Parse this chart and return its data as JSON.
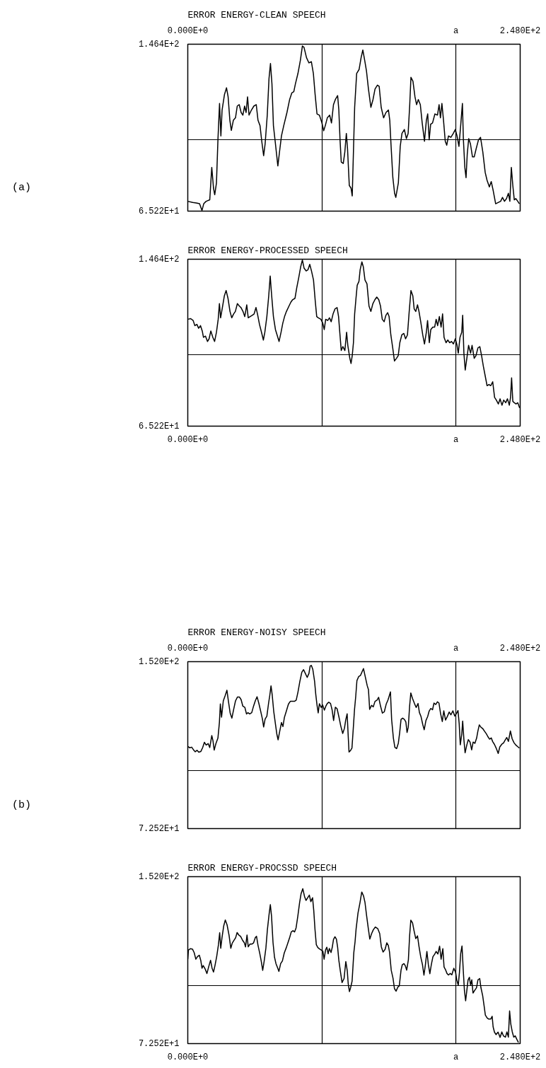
{
  "chart_data": [
    {
      "type": "line",
      "title": "ERROR ENERGY-CLEAN SPEECH",
      "annotations": [
        "(a)"
      ],
      "xlim": [
        0,
        248
      ],
      "ylim": [
        65.22,
        146.4
      ],
      "xticks": [
        {
          "value": 0,
          "label": "0.000E+0"
        },
        {
          "value": 100,
          "label": null
        },
        {
          "value": 200,
          "label": "a"
        },
        {
          "value": 248,
          "label": "2.480E+2"
        }
      ],
      "yticks": [
        {
          "value": 65.22,
          "label": "6.522E+1"
        },
        {
          "value": 100,
          "label": null
        },
        {
          "value": 146.4,
          "label": "1.464E+2"
        }
      ],
      "grid": true,
      "x": [
        0,
        3.7,
        6.4,
        8.8,
        10.6,
        11.9,
        13.7,
        16.4,
        17.9,
        19.2,
        20.1,
        21.4,
        22.5,
        23.7,
        24.7,
        25.6,
        27.4,
        28.9,
        30.1,
        31.4,
        32.5,
        34.0,
        35.6,
        36.9,
        38.4,
        39.8,
        41.1,
        42.4,
        43.5,
        44.6,
        45.7,
        47.5,
        49.3,
        51.1,
        52.4,
        53.9,
        55.2,
        56.6,
        57.7,
        59.3,
        60.6,
        61.7,
        62.8,
        63.9,
        65.2,
        67.2,
        68.7,
        69.9,
        71.6,
        74.0,
        76.0,
        77.6,
        79.1,
        80.3,
        82.2,
        84.0,
        85.5,
        86.7,
        88.6,
        90.4,
        92.2,
        93.7,
        95.0,
        96.4,
        98.2,
        100.1,
        101.4,
        102.6,
        104.1,
        105.9,
        107.2,
        108.7,
        110.1,
        111.8,
        112.7,
        113.6,
        114.5,
        116.0,
        117.2,
        118.3,
        119.2,
        120.5,
        121.8,
        122.7,
        123.6,
        124.5,
        126.0,
        127.8,
        129.3,
        130.6,
        132.0,
        133.3,
        134.8,
        136.6,
        138.2,
        139.7,
        141.5,
        142.8,
        144.3,
        146.1,
        147.9,
        149.7,
        150.7,
        151.6,
        153.0,
        154.3,
        155.2,
        157.1,
        158.5,
        159.8,
        161.6,
        163.1,
        164.4,
        165.6,
        166.5,
        168.0,
        169.5,
        170.7,
        172.0,
        173.5,
        174.9,
        176.6,
        178.0,
        179.0,
        180.1,
        181.2,
        182.6,
        184.4,
        186.3,
        187.5,
        188.5,
        189.6,
        190.8,
        192.1,
        193.2,
        194.5,
        196.3,
        198.1,
        199.6,
        200.9,
        202.3,
        203.6,
        204.9,
        205.6,
        206.7,
        207.6,
        208.5,
        209.6,
        210.9,
        212.4,
        213.7,
        215.1,
        216.9,
        218.4,
        220.1,
        221.9,
        223.3,
        225.0,
        226.4,
        227.9,
        229.7,
        231.5,
        233.4,
        234.8,
        236.3,
        237.8,
        239.2,
        240.3,
        241.4,
        242.5,
        243.6,
        244.7,
        246.2,
        247.4
      ],
      "series": [
        {
          "color": "#000000",
          "values": [
            70.0,
            69.4,
            69.2,
            68.8,
            65.5,
            68.8,
            70.0,
            70.7,
            86.5,
            76.4,
            73.2,
            78.9,
            99.9,
            117.6,
            101.8,
            114.4,
            122.0,
            125.2,
            120.8,
            109.4,
            104.5,
            109.4,
            110.6,
            116.3,
            117.0,
            113.2,
            111.9,
            116.3,
            113.2,
            120.8,
            111.9,
            114.4,
            116.3,
            117.0,
            109.4,
            106.8,
            99.2,
            92.2,
            97.9,
            111.9,
            129.7,
            137.0,
            127.1,
            106.8,
            99.2,
            87.2,
            95.4,
            101.8,
            106.8,
            113.2,
            119.5,
            122.7,
            123.3,
            127.1,
            132.2,
            138.5,
            145.5,
            144.9,
            139.8,
            137.3,
            137.9,
            132.2,
            122.0,
            112.5,
            111.9,
            108.1,
            104.3,
            106.8,
            110.6,
            111.9,
            108.1,
            117.0,
            119.5,
            121.4,
            114.4,
            99.9,
            89.1,
            88.4,
            94.1,
            103.0,
            95.4,
            77.7,
            76.4,
            72.6,
            94.1,
            115.7,
            132.2,
            134.1,
            139.8,
            143.6,
            138.5,
            133.5,
            124.6,
            115.7,
            119.5,
            124.6,
            126.5,
            125.9,
            115.7,
            110.6,
            113.2,
            114.4,
            109.4,
            97.9,
            81.5,
            73.9,
            71.9,
            78.9,
            96.7,
            103.0,
            104.9,
            100.5,
            103.0,
            117.0,
            130.3,
            128.4,
            120.8,
            117.0,
            119.5,
            117.0,
            108.1,
            99.2,
            109.4,
            112.5,
            99.9,
            107.5,
            108.1,
            112.5,
            111.9,
            117.0,
            110.6,
            117.6,
            109.4,
            99.2,
            97.3,
            101.8,
            101.1,
            103.0,
            104.9,
            101.8,
            96.7,
            106.8,
            117.6,
            100.5,
            86.5,
            81.5,
            92.9,
            100.5,
            97.9,
            91.6,
            91.6,
            95.4,
            99.9,
            101.1,
            94.1,
            84.0,
            80.2,
            77.0,
            79.6,
            75.1,
            68.8,
            69.4,
            70.0,
            71.9,
            70.0,
            71.3,
            73.9,
            70.0,
            86.5,
            77.7,
            70.7,
            71.3,
            70.0,
            68.8
          ]
        }
      ]
    },
    {
      "type": "line",
      "title": "ERROR ENERGY-PROCESSED SPEECH",
      "xlim": [
        0,
        248
      ],
      "ylim": [
        65.22,
        146.4
      ],
      "xticks": [
        {
          "value": 0,
          "label": "0.000E+0"
        },
        {
          "value": 100,
          "label": null
        },
        {
          "value": 200,
          "label": "a"
        },
        {
          "value": 248,
          "label": "2.480E+2"
        }
      ],
      "yticks": [
        {
          "value": 65.22,
          "label": "6.522E+1"
        },
        {
          "value": 100,
          "label": null
        },
        {
          "value": 146.4,
          "label": "1.464E+2"
        }
      ],
      "grid": true,
      "x": [
        0,
        2.2,
        4.0,
        5.3,
        6.8,
        8.1,
        9.5,
        10.8,
        11.7,
        13.2,
        14.7,
        15.9,
        17.2,
        18.7,
        20.0,
        21.4,
        22.7,
        23.6,
        24.5,
        26.0,
        27.3,
        28.6,
        30.0,
        31.5,
        32.8,
        34.2,
        35.5,
        37.0,
        38.5,
        39.7,
        41.2,
        42.5,
        44.0,
        45.1,
        46.5,
        48.0,
        49.5,
        50.9,
        52.0,
        53.5,
        55.0,
        56.4,
        57.5,
        59.0,
        60.4,
        61.5,
        62.6,
        63.9,
        65.4,
        66.9,
        68.1,
        69.6,
        70.9,
        72.2,
        73.6,
        75.5,
        76.9,
        78.2,
        80.0,
        81.3,
        82.8,
        84.2,
        85.5,
        86.8,
        88.3,
        89.7,
        91.0,
        92.3,
        93.8,
        95.1,
        96.2,
        97.4,
        99.3,
        100.7,
        101.8,
        102.9,
        104.4,
        105.7,
        107.0,
        108.4,
        109.9,
        111.4,
        112.5,
        113.4,
        114.5,
        115.7,
        117.2,
        118.5,
        119.4,
        120.9,
        121.8,
        122.7,
        123.6,
        124.5,
        125.5,
        126.4,
        127.7,
        128.6,
        129.9,
        131.0,
        132.2,
        133.7,
        135.2,
        136.6,
        138.1,
        139.6,
        141.0,
        142.5,
        143.8,
        145.1,
        146.5,
        147.8,
        149.1,
        150.2,
        151.5,
        152.9,
        154.2,
        155.7,
        157.0,
        158.2,
        159.7,
        161.2,
        162.5,
        163.9,
        165.2,
        166.5,
        167.9,
        168.9,
        170.1,
        171.4,
        172.5,
        173.8,
        175.3,
        176.6,
        178.0,
        178.9,
        180.2,
        181.3,
        182.8,
        184.2,
        185.3,
        186.4,
        187.7,
        189.0,
        190.1,
        191.2,
        192.7,
        194.0,
        195.4,
        196.7,
        198.2,
        199.6,
        200.9,
        201.8,
        203.1,
        204.4,
        205.1,
        206.0,
        207.0,
        208.2,
        209.5,
        211.0,
        212.1,
        213.7,
        215.0,
        216.5,
        217.9,
        219.2,
        220.5,
        222.0,
        223.3,
        224.7,
        226.0,
        227.5,
        228.9,
        230.2,
        231.7,
        233.0,
        234.4,
        235.7,
        237.2,
        238.5,
        239.9,
        240.8,
        241.6,
        242.5,
        243.6,
        244.9,
        246.2,
        247.6
      ],
      "series": [
        {
          "color": "#000000",
          "values": [
            117.2,
            117.5,
            116.6,
            114.1,
            114.7,
            112.8,
            114.1,
            111.5,
            108.4,
            109.0,
            106.4,
            107.7,
            111.5,
            108.4,
            106.4,
            110.9,
            117.2,
            124.8,
            117.9,
            123.6,
            128.6,
            131.2,
            127.4,
            121.0,
            117.9,
            119.8,
            121.0,
            124.8,
            123.6,
            122.9,
            121.0,
            118.5,
            124.2,
            117.9,
            118.5,
            119.1,
            119.8,
            122.9,
            119.8,
            114.7,
            110.9,
            107.1,
            110.9,
            118.5,
            128.6,
            138.2,
            128.6,
            118.5,
            112.2,
            109.0,
            106.4,
            110.9,
            115.3,
            118.5,
            121.0,
            123.6,
            125.5,
            126.7,
            127.4,
            132.5,
            137.5,
            142.6,
            146.0,
            142.0,
            140.7,
            141.3,
            143.9,
            140.7,
            136.3,
            126.1,
            118.5,
            117.9,
            117.2,
            115.3,
            112.2,
            117.2,
            116.6,
            117.9,
            116.0,
            119.8,
            122.3,
            122.9,
            118.5,
            110.9,
            102.0,
            103.9,
            102.0,
            110.9,
            104.5,
            98.2,
            95.7,
            99.5,
            105.8,
            119.8,
            127.4,
            133.7,
            135.6,
            141.3,
            145.1,
            142.6,
            136.3,
            134.4,
            123.6,
            121.0,
            124.8,
            126.7,
            128.0,
            126.7,
            123.6,
            117.2,
            116.0,
            119.1,
            120.4,
            118.5,
            109.6,
            103.3,
            96.9,
            98.2,
            99.5,
            105.8,
            109.6,
            110.3,
            107.7,
            109.6,
            121.0,
            131.2,
            128.6,
            122.3,
            121.0,
            124.2,
            121.0,
            116.0,
            109.6,
            105.2,
            110.9,
            116.6,
            105.8,
            112.2,
            113.4,
            113.4,
            117.2,
            114.1,
            118.5,
            113.4,
            119.8,
            108.4,
            105.8,
            107.1,
            105.8,
            106.4,
            105.2,
            107.7,
            104.5,
            100.7,
            108.4,
            110.9,
            119.1,
            100.7,
            92.5,
            98.2,
            104.5,
            100.7,
            104.5,
            98.2,
            99.5,
            103.3,
            103.9,
            99.5,
            94.4,
            89.3,
            84.9,
            85.5,
            84.9,
            86.8,
            79.2,
            77.9,
            76.0,
            78.5,
            75.4,
            77.9,
            76.6,
            78.5,
            75.4,
            79.2,
            88.7,
            77.3,
            76.6,
            76.0,
            76.6,
            74.1
          ]
        }
      ]
    },
    {
      "type": "line",
      "title": "ERROR ENERGY-NOISY SPEECH",
      "annotations": [
        "(b)"
      ],
      "xlim": [
        0,
        248
      ],
      "ylim": [
        72.52,
        152.0
      ],
      "xticks": [
        {
          "value": 0,
          "label": "0.000E+0"
        },
        {
          "value": 100,
          "label": null
        },
        {
          "value": 200,
          "label": "a"
        },
        {
          "value": 248,
          "label": "2.480E+2"
        }
      ],
      "yticks": [
        {
          "value": 72.52,
          "label": "7.252E+1"
        },
        {
          "value": 100,
          "label": null
        },
        {
          "value": 152.0,
          "label": "1.520E+2"
        }
      ],
      "grid": true,
      "x": [
        0,
        1.5,
        2.9,
        4.2,
        5.5,
        6.9,
        8.2,
        9.7,
        11.1,
        12.4,
        13.7,
        15.2,
        16.4,
        17.9,
        18.8,
        19.7,
        21.0,
        22.5,
        23.6,
        24.3,
        25.2,
        26.5,
        27.9,
        29.2,
        30.3,
        31.6,
        32.9,
        34.3,
        35.6,
        37.1,
        38.5,
        39.8,
        41.1,
        42.6,
        43.8,
        44.9,
        46.2,
        47.7,
        49.1,
        50.4,
        51.7,
        53.0,
        54.4,
        55.7,
        56.6,
        57.7,
        59.0,
        60.3,
        61.2,
        62.1,
        63.0,
        64.1,
        65.4,
        66.5,
        67.4,
        68.5,
        69.9,
        71.0,
        72.1,
        73.6,
        75.1,
        76.5,
        78.2,
        79.6,
        80.9,
        82.2,
        83.6,
        85.1,
        86.4,
        87.7,
        89.1,
        90.4,
        91.3,
        92.2,
        93.3,
        94.6,
        95.5,
        96.4,
        97.3,
        98.2,
        99.5,
        100.6,
        101.9,
        103.0,
        104.1,
        105.2,
        106.5,
        107.7,
        108.8,
        110.1,
        111.4,
        112.9,
        114.1,
        115.6,
        116.9,
        117.8,
        118.9,
        119.6,
        120.3,
        121.4,
        122.5,
        123.5,
        124.4,
        125.3,
        126.2,
        127.5,
        128.9,
        130.2,
        131.1,
        132.6,
        133.9,
        134.8,
        135.7,
        137.1,
        138.4,
        139.7,
        141.2,
        142.4,
        143.9,
        145.2,
        146.6,
        148.1,
        149.4,
        150.3,
        151.2,
        152.1,
        153.4,
        154.5,
        155.8,
        157.1,
        158.1,
        159.1,
        160.3,
        161.6,
        162.7,
        163.6,
        164.5,
        165.5,
        166.4,
        167.6,
        169.1,
        170.4,
        171.8,
        172.8,
        174.0,
        175.3,
        176.4,
        177.7,
        179.0,
        180.1,
        181.3,
        182.6,
        183.7,
        185.0,
        186.3,
        187.4,
        188.6,
        189.9,
        191.0,
        192.3,
        193.8,
        195.0,
        196.3,
        197.8,
        199.2,
        200.5,
        201.6,
        202.5,
        203.3,
        204.4,
        205.1,
        206.0,
        206.9,
        208.2,
        209.3,
        210.6,
        211.8,
        212.9,
        214.2,
        215.5,
        216.4,
        217.5,
        218.8,
        220.1,
        221.5,
        222.8,
        223.9,
        225.2,
        226.4,
        227.5,
        228.8,
        230.1,
        231.6,
        232.8,
        234.3,
        235.6,
        236.7,
        238.0,
        239.2,
        240.7,
        242.0,
        243.4,
        244.9,
        246.2,
        247.4
      ],
      "series": [
        {
          "color": "#000000",
          "values": [
            111.6,
            111.0,
            111.3,
            110.1,
            109.1,
            109.8,
            108.9,
            109.2,
            111.1,
            113.6,
            112.3,
            113.0,
            111.1,
            116.8,
            114.3,
            109.9,
            113.0,
            115.6,
            123.1,
            131.9,
            125.6,
            133.3,
            135.8,
            138.4,
            133.3,
            127.6,
            125.1,
            129.5,
            133.3,
            135.2,
            135.2,
            133.9,
            130.8,
            130.2,
            127.1,
            127.7,
            127.1,
            127.7,
            130.9,
            133.4,
            135.3,
            132.2,
            128.4,
            124.7,
            120.9,
            124.7,
            126.0,
            132.3,
            136.0,
            140.5,
            136.1,
            128.5,
            122.3,
            117.3,
            114.8,
            118.5,
            123.0,
            121.1,
            125.5,
            128.6,
            131.8,
            133.1,
            133.1,
            133.1,
            133.7,
            137.5,
            142.5,
            147.0,
            148.2,
            146.4,
            144.5,
            146.4,
            149.9,
            150.2,
            148.3,
            142.7,
            136.4,
            131.4,
            127.6,
            132.0,
            130.2,
            131.4,
            128.9,
            130.8,
            132.1,
            132.7,
            132.1,
            129.0,
            124.0,
            130.3,
            129.6,
            125.3,
            121.5,
            117.8,
            120.3,
            124.1,
            127.2,
            117.8,
            109.0,
            109.7,
            110.9,
            120.4,
            129.2,
            135.4,
            143.0,
            144.9,
            145.5,
            147.4,
            148.7,
            144.3,
            140.5,
            138.7,
            129.3,
            131.2,
            130.5,
            133.1,
            133.7,
            135.0,
            130.6,
            127.5,
            128.1,
            131.9,
            133.8,
            135.7,
            137.6,
            124.4,
            115.6,
            111.2,
            110.6,
            113.2,
            118.2,
            124.5,
            125.1,
            124.5,
            123.3,
            118.3,
            120.8,
            130.8,
            137.1,
            134.6,
            132.1,
            130.2,
            132.1,
            127.8,
            125.9,
            122.1,
            119.6,
            124.0,
            125.9,
            128.5,
            129.7,
            129.1,
            132.3,
            131.6,
            132.9,
            132.3,
            127.3,
            123.5,
            128.6,
            124.2,
            126.1,
            128.0,
            126.7,
            128.6,
            126.1,
            127.4,
            128.7,
            122.4,
            112.4,
            117.4,
            123.7,
            114.9,
            108.6,
            112.4,
            114.9,
            113.7,
            110.0,
            113.7,
            113.1,
            115.6,
            118.8,
            121.9,
            120.7,
            120.1,
            118.8,
            117.6,
            116.3,
            115.1,
            115.7,
            113.9,
            112.6,
            110.8,
            108.3,
            111.4,
            112.7,
            113.3,
            114.6,
            115.9,
            114.0,
            119.0,
            115.3,
            113.4,
            112.2,
            111.5,
            110.9
          ]
        }
      ]
    },
    {
      "type": "line",
      "title": "ERROR ENERGY-PROCSSD SPEECH",
      "xlim": [
        0,
        248
      ],
      "ylim": [
        72.52,
        152.0
      ],
      "xticks": [
        {
          "value": 0,
          "label": "0.000E+0"
        },
        {
          "value": 100,
          "label": null
        },
        {
          "value": 200,
          "label": "a"
        },
        {
          "value": 248,
          "label": "2.480E+2"
        }
      ],
      "yticks": [
        {
          "value": 72.52,
          "label": "7.252E+1"
        },
        {
          "value": 100,
          "label": null
        },
        {
          "value": 152.0,
          "label": "1.520E+2"
        }
      ],
      "grid": true,
      "x": [
        0,
        0.5,
        2.0,
        3.5,
        4.8,
        6.0,
        7.3,
        8.6,
        9.7,
        10.6,
        11.5,
        13.0,
        14.3,
        15.6,
        17.0,
        18.1,
        19.2,
        20.3,
        21.6,
        22.9,
        23.8,
        24.6,
        25.5,
        26.8,
        28.0,
        29.3,
        30.8,
        32.1,
        33.2,
        34.5,
        35.7,
        36.8,
        38.1,
        39.4,
        40.9,
        42.2,
        43.1,
        44.2,
        45.1,
        46.4,
        47.8,
        49.1,
        50.4,
        51.3,
        52.4,
        53.7,
        54.8,
        55.9,
        57.0,
        58.3,
        59.4,
        60.7,
        61.6,
        62.5,
        63.6,
        64.7,
        65.8,
        66.9,
        68.0,
        69.3,
        70.6,
        72.0,
        73.5,
        74.8,
        76.1,
        77.2,
        78.5,
        79.7,
        80.8,
        82.1,
        83.4,
        84.5,
        85.8,
        87.1,
        88.2,
        89.5,
        90.7,
        91.8,
        93.1,
        94.0,
        94.9,
        95.9,
        97.0,
        98.1,
        99.5,
        100.8,
        101.7,
        102.8,
        103.7,
        104.7,
        105.6,
        106.9,
        107.8,
        108.7,
        109.8,
        110.9,
        111.8,
        112.7,
        113.8,
        115.1,
        116.6,
        117.9,
        119.0,
        119.7,
        120.6,
        121.5,
        122.6,
        123.9,
        124.8,
        125.6,
        127.0,
        128.5,
        129.8,
        131.1,
        132.2,
        133.4,
        134.7,
        135.8,
        137.1,
        138.4,
        139.9,
        141.7,
        143.2,
        144.4,
        145.7,
        147.2,
        148.5,
        149.6,
        150.5,
        151.8,
        153.1,
        154.2,
        155.4,
        156.7,
        157.8,
        159.1,
        160.0,
        161.3,
        162.4,
        163.3,
        164.6,
        165.5,
        166.4,
        167.7,
        168.8,
        170.1,
        171.4,
        172.5,
        173.8,
        175.1,
        176.2,
        177.3,
        178.4,
        179.5,
        180.6,
        181.7,
        182.9,
        184.2,
        185.3,
        186.6,
        187.9,
        189.0,
        190.3,
        191.2,
        192.3,
        193.4,
        194.5,
        195.8,
        197.0,
        198.5,
        199.8,
        200.7,
        201.8,
        202.7,
        203.6,
        204.6,
        205.5,
        206.4,
        207.3,
        208.2,
        209.1,
        210.1,
        211.0,
        211.9,
        212.8,
        214.1,
        215.4,
        216.5,
        217.8,
        218.7,
        220.0,
        221.1,
        222.0,
        223.3,
        224.5,
        226.0,
        227.1,
        227.8,
        228.8,
        230.0,
        231.5,
        233.0,
        234.3,
        235.5,
        237.0,
        238.1,
        239.2,
        240.1,
        241.0,
        242.1,
        243.2,
        244.3,
        245.6,
        246.7
      ],
      "series": [
        {
          "color": "#000000",
          "values": [
            112.7,
            117.1,
            117.7,
            117.5,
            115.8,
            112.7,
            114.0,
            114.6,
            112.1,
            108.4,
            109.7,
            108.0,
            105.9,
            109.1,
            112.2,
            108.5,
            106.6,
            109.7,
            114.1,
            119.7,
            125.3,
            117.9,
            122.8,
            128.5,
            131.4,
            129.1,
            124.1,
            117.9,
            120.4,
            121.7,
            122.9,
            125.4,
            124.2,
            123.6,
            121.7,
            120.5,
            118.6,
            124.2,
            118.6,
            119.9,
            119.9,
            120.5,
            123.0,
            123.6,
            119.3,
            115.5,
            111.8,
            107.4,
            111.8,
            118.1,
            126.8,
            134.3,
            138.7,
            133.1,
            120.6,
            113.7,
            110.6,
            108.8,
            106.9,
            110.6,
            111.9,
            115.7,
            118.2,
            120.7,
            123.2,
            125.7,
            126.3,
            125.7,
            127.6,
            133.2,
            139.5,
            143.8,
            146.3,
            142.6,
            140.7,
            142.0,
            143.2,
            140.1,
            142.0,
            135.8,
            127.0,
            119.6,
            118.3,
            117.7,
            117.1,
            116.5,
            112.7,
            117.1,
            118.4,
            115.3,
            117.8,
            115.9,
            118.4,
            122.1,
            123.4,
            122.2,
            118.4,
            112.2,
            107.2,
            101.6,
            103.5,
            111.6,
            107.2,
            101.0,
            97.3,
            99.2,
            102.3,
            116.0,
            121.0,
            127.2,
            134.7,
            139.7,
            144.7,
            142.9,
            139.8,
            133.5,
            127.3,
            122.3,
            124.8,
            126.7,
            128.0,
            127.3,
            124.9,
            118.6,
            116.1,
            117.4,
            120.5,
            119.3,
            116.2,
            107.4,
            103.7,
            98.7,
            97.5,
            99.4,
            100.0,
            107.5,
            110.0,
            110.6,
            109.4,
            107.5,
            112.5,
            123.8,
            131.3,
            130.0,
            126.3,
            122.5,
            123.8,
            118.8,
            113.8,
            110.1,
            105.1,
            110.1,
            116.4,
            110.1,
            105.8,
            110.1,
            113.9,
            115.1,
            116.4,
            115.2,
            118.9,
            112.7,
            117.7,
            109.0,
            107.7,
            105.9,
            105.2,
            105.9,
            105.3,
            108.4,
            106.5,
            102.8,
            100.3,
            106.5,
            115.3,
            119.0,
            107.8,
            97.8,
            92.9,
            97.8,
            102.8,
            104.1,
            100.3,
            102.9,
            96.6,
            97.9,
            99.1,
            102.9,
            103.5,
            99.2,
            95.4,
            90.4,
            86.1,
            84.8,
            84.2,
            84.2,
            85.5,
            80.5,
            78.0,
            76.8,
            78.0,
            75.5,
            78.1,
            76.2,
            75.6,
            78.1,
            75.6,
            88.1,
            81.8,
            78.1,
            75.6,
            76.2,
            74.4,
            73.1
          ]
        }
      ]
    }
  ]
}
